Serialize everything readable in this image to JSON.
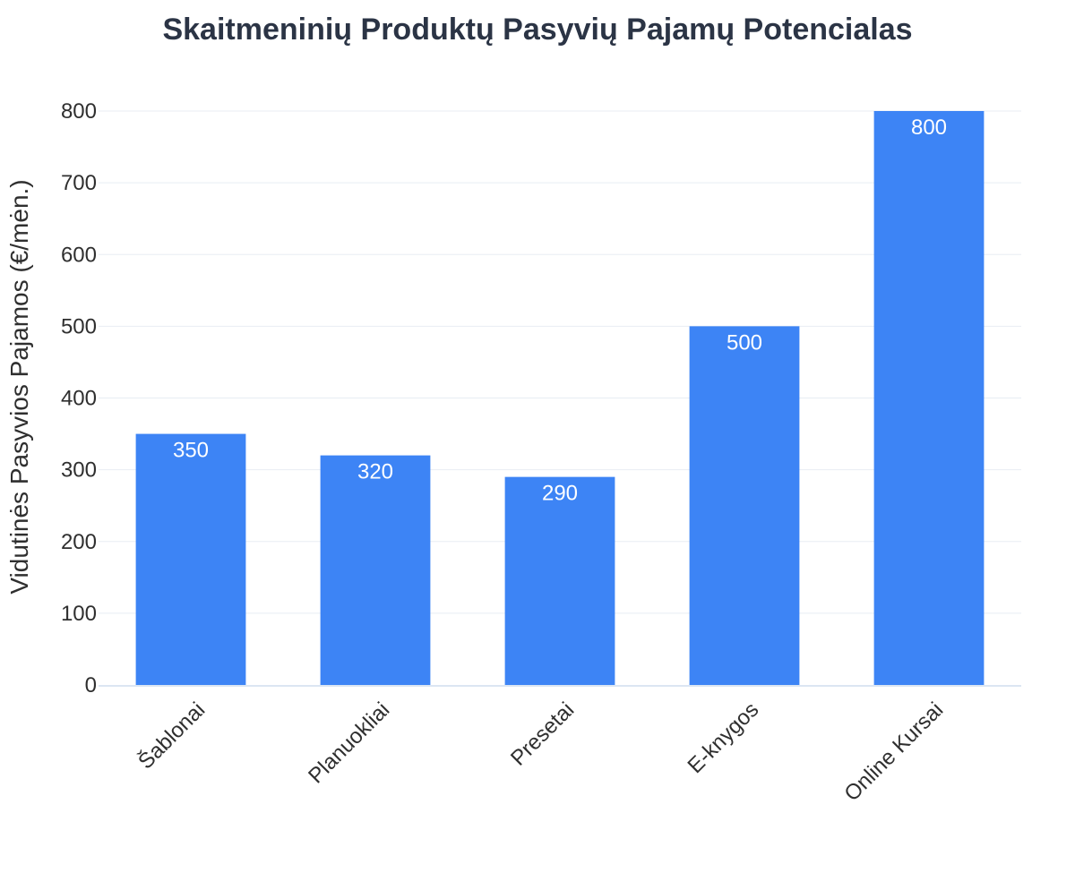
{
  "chart_data": {
    "type": "bar",
    "title": "Skaitmeninių Produktų Pasyvių Pajamų Potencialas",
    "xlabel": "",
    "ylabel": "Vidutinės Pasyvios Pajamos (€/mėn.)",
    "categories": [
      "Šablonai",
      "Planuokliai",
      "Presetai",
      "E-knygos",
      "Online Kursai"
    ],
    "values": [
      350,
      320,
      290,
      500,
      800
    ],
    "data_labels": [
      "350",
      "320",
      "290",
      "500",
      "800"
    ],
    "ylim": [
      0,
      800
    ],
    "yticks": [
      0,
      100,
      200,
      300,
      400,
      500,
      600,
      700,
      800
    ],
    "grid": true,
    "colors": {
      "bar": "#3d84f5",
      "grid": "#e8edf3",
      "axis": "#dce6f2",
      "text": "#2f2f2f",
      "title": "#2b3445"
    }
  }
}
